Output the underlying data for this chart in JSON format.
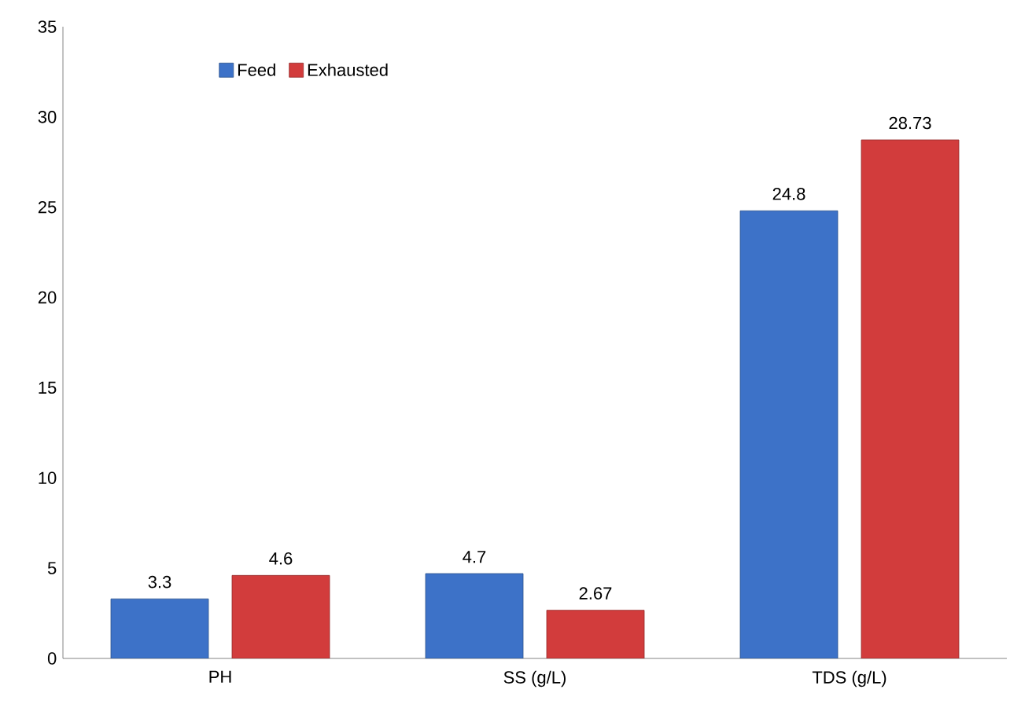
{
  "chart_data": {
    "type": "bar",
    "categories": [
      "PH",
      "SS (g/L)",
      "TDS (g/L)"
    ],
    "series": [
      {
        "name": "Feed",
        "color": "#3d72c8",
        "values": [
          3.3,
          4.7,
          24.8
        ]
      },
      {
        "name": "Exhausted",
        "color": "#d23c3c",
        "values": [
          4.6,
          2.67,
          28.73
        ]
      }
    ],
    "ylim": [
      0,
      35
    ],
    "yticks": [
      0,
      5,
      10,
      15,
      20,
      25,
      30,
      35
    ],
    "legend": "top left",
    "data_labels": true
  }
}
